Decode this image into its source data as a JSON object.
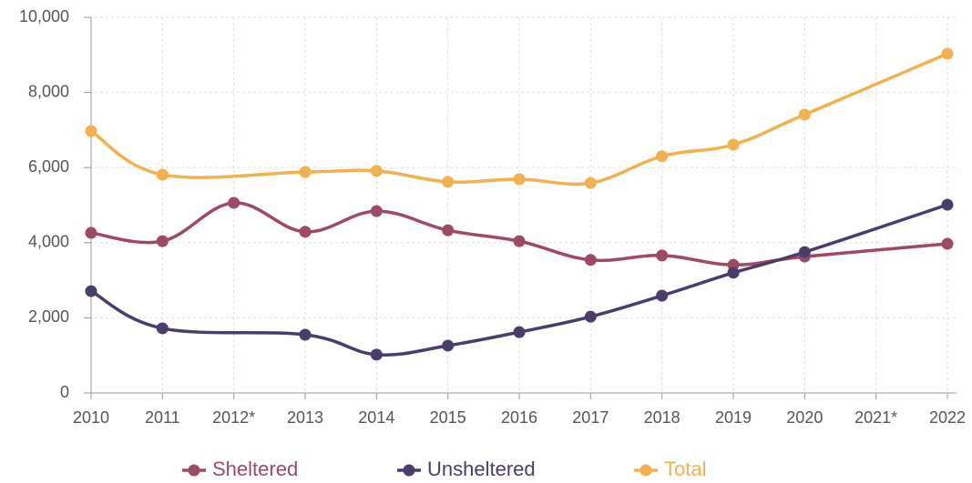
{
  "chart_data": {
    "type": "line",
    "xlim": [
      2010,
      2022
    ],
    "xticks": [
      2010,
      2011,
      {
        "value": 2012,
        "label": "2012*"
      },
      2013,
      2014,
      2015,
      2016,
      2017,
      2018,
      2019,
      2020,
      {
        "value": 2021,
        "label": "2021*"
      },
      2022
    ],
    "ylim": [
      0,
      10000
    ],
    "yticks": [
      0,
      {
        "value": 2000,
        "label": "2,000"
      },
      {
        "value": 4000,
        "label": "4,000"
      },
      {
        "value": 6000,
        "label": "6,000"
      },
      {
        "value": 8000,
        "label": "8,000"
      },
      {
        "value": 10000,
        "label": "10,000"
      }
    ],
    "grid": true,
    "legend": "bottom",
    "series": [
      {
        "name": "Sheltered",
        "color": "#9e4a66",
        "x": [
          2010,
          2011,
          2012,
          2013,
          2014,
          2015,
          2016,
          2017,
          2018,
          2019,
          2020,
          2022
        ],
        "values": [
          4260,
          4040,
          5060,
          4290,
          4840,
          4330,
          4040,
          3540,
          3660,
          3410,
          3630,
          3970
        ]
      },
      {
        "name": "Unsheltered",
        "color": "#4a3d6b",
        "x": [
          2010,
          2011,
          2013,
          2014,
          2015,
          2016,
          2017,
          2018,
          2019,
          2020,
          2022
        ],
        "values": [
          2710,
          1720,
          1550,
          1020,
          1260,
          1620,
          2030,
          2590,
          3200,
          3750,
          5010
        ]
      },
      {
        "name": "Total",
        "color": "#f2b04f",
        "x": [
          2010,
          2011,
          2013,
          2014,
          2015,
          2016,
          2017,
          2018,
          2019,
          2020,
          2022
        ],
        "values": [
          6970,
          5810,
          5880,
          5910,
          5620,
          5690,
          5590,
          6300,
          6610,
          7410,
          9030
        ]
      }
    ]
  }
}
